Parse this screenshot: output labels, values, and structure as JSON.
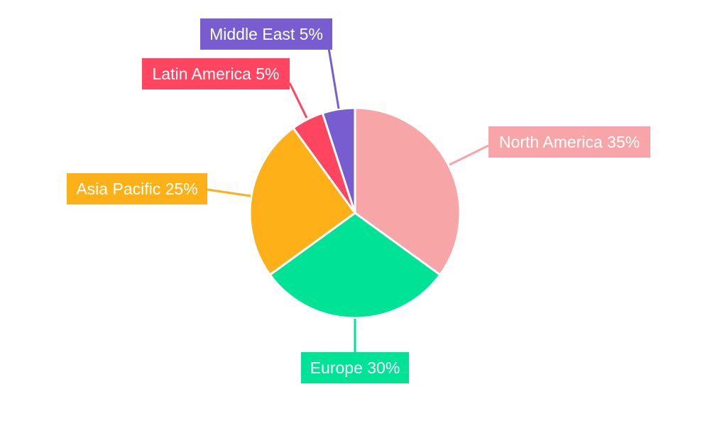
{
  "chart_data": {
    "type": "pie",
    "categories": [
      "North America",
      "Europe",
      "Asia Pacific",
      "Latin America",
      "Middle East"
    ],
    "values": [
      35,
      30,
      25,
      5,
      5
    ],
    "labels": [
      "North America 35%",
      "Europe 30%",
      "Asia Pacific 25%",
      "Latin America 5%",
      "Middle East 5%"
    ],
    "colors": [
      "#F8A5A8",
      "#00E396",
      "#FEB019",
      "#FF4560",
      "#775DD0"
    ],
    "start_angle": "top, clockwise",
    "legend": "none"
  }
}
